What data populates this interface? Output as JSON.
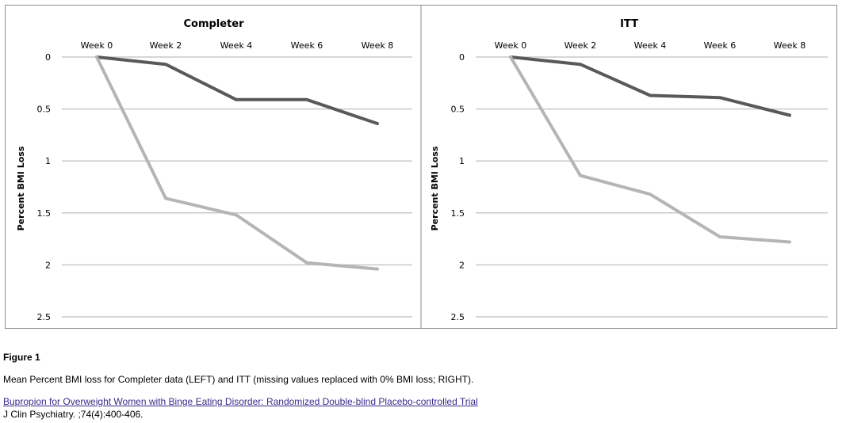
{
  "chart_data": [
    {
      "type": "line",
      "title": "Completer",
      "xlabel": "",
      "ylabel": "Percent BMI Loss",
      "categories": [
        "Week 0",
        "Week 2",
        "Week 4",
        "Week 6",
        "Week 8"
      ],
      "ylim": [
        2.5,
        0
      ],
      "yticks": [
        "0",
        "0.5",
        "1",
        "1.5",
        "2",
        "2.5"
      ],
      "y_inverted": true,
      "grid": true,
      "series": [
        {
          "color": "#595959",
          "values": [
            0,
            0.07,
            0.41,
            0.41,
            0.64
          ]
        },
        {
          "color": "#b5b5b5",
          "values": [
            0,
            1.36,
            1.52,
            1.98,
            2.04
          ]
        }
      ]
    },
    {
      "type": "line",
      "title": "ITT",
      "xlabel": "",
      "ylabel": "Percent BMI Loss",
      "categories": [
        "Week 0",
        "Week 2",
        "Week 4",
        "Week 6",
        "Week 8"
      ],
      "ylim": [
        2.5,
        0
      ],
      "yticks": [
        "0",
        "0.5",
        "1",
        "1.5",
        "2",
        "2.5"
      ],
      "y_inverted": true,
      "grid": true,
      "series": [
        {
          "color": "#595959",
          "values": [
            0,
            0.07,
            0.37,
            0.39,
            0.56
          ]
        },
        {
          "color": "#b5b5b5",
          "values": [
            0,
            1.14,
            1.32,
            1.73,
            1.78
          ]
        }
      ]
    }
  ],
  "caption": {
    "figure_label": "Figure 1",
    "description": "Mean Percent BMI loss for Completer data (LEFT) and ITT (missing values replaced with 0% BMI loss; RIGHT).",
    "link_text": "Bupropion for Overweight Women with Binge Eating Disorder: Randomized Double-blind Placebo-controlled Trial",
    "citation": "J Clin Psychiatry. ;74(4):400-406."
  }
}
